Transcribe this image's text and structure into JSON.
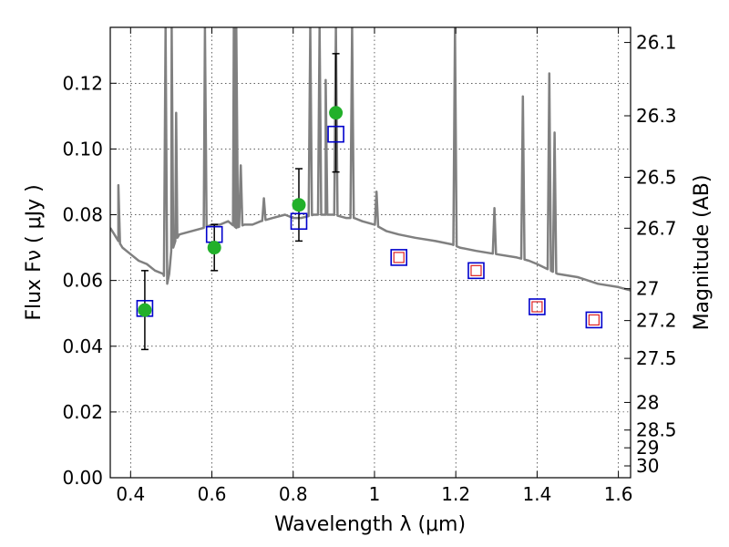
{
  "chart_data": {
    "type": "scatter",
    "title": "",
    "xlabel": "Wavelength  λ (μm)",
    "ylabel_left": "Flux  Fν  ( μJy )",
    "ylabel_right": "Magnitude (AB)",
    "xlim": [
      0.35,
      1.63
    ],
    "ylim": [
      0.0,
      0.137
    ],
    "grid": true,
    "x_ticks": [
      0.4,
      0.6,
      0.8,
      1.0,
      1.2,
      1.4,
      1.6
    ],
    "x_tick_labels": [
      "0.4",
      "0.6",
      "0.8",
      "1",
      "1.2",
      "1.4",
      "1.6"
    ],
    "y_ticks": [
      0.0,
      0.02,
      0.04,
      0.06,
      0.08,
      0.1,
      0.12
    ],
    "y_tick_labels": [
      "0.00",
      "0.02",
      "0.04",
      "0.06",
      "0.08",
      "0.10",
      "0.12"
    ],
    "right_ticks": [
      {
        "flux": 0.1324,
        "label": "26.1"
      },
      {
        "flux": 0.1101,
        "label": "26.3"
      },
      {
        "flux": 0.0914,
        "label": "26.5"
      },
      {
        "flux": 0.0759,
        "label": "26.7"
      },
      {
        "flux": 0.0575,
        "label": "27"
      },
      {
        "flux": 0.0478,
        "label": "27.2"
      },
      {
        "flux": 0.0363,
        "label": "27.5"
      },
      {
        "flux": 0.0229,
        "label": "28"
      },
      {
        "flux": 0.0145,
        "label": "28.5"
      },
      {
        "flux": 0.0091,
        "label": "29"
      },
      {
        "flux": 0.0036,
        "label": "30"
      }
    ],
    "series": [
      {
        "kind": "model_spectrum",
        "color": "#808080",
        "x": [
          0.35,
          0.36,
          0.365,
          0.37,
          0.375,
          0.38,
          0.4,
          0.42,
          0.44,
          0.46,
          0.48,
          0.49,
          0.495,
          0.5,
          0.505,
          0.51,
          0.515,
          0.52,
          0.55,
          0.58,
          0.6,
          0.62,
          0.64,
          0.66,
          0.68,
          0.7,
          0.72,
          0.75,
          0.78,
          0.8,
          0.82,
          0.85,
          0.88,
          0.9,
          0.93,
          0.95,
          0.97,
          1.0,
          1.03,
          1.06,
          1.1,
          1.15,
          1.19,
          1.21,
          1.25,
          1.3,
          1.35,
          1.38,
          1.4,
          1.45,
          1.5,
          1.55,
          1.6,
          1.63
        ],
        "y": [
          0.076,
          0.074,
          0.073,
          0.072,
          0.071,
          0.07,
          0.068,
          0.066,
          0.065,
          0.063,
          0.062,
          0.059,
          0.062,
          0.069,
          0.07,
          0.072,
          0.073,
          0.074,
          0.075,
          0.076,
          0.077,
          0.077,
          0.078,
          0.076,
          0.077,
          0.077,
          0.078,
          0.079,
          0.08,
          0.079,
          0.079,
          0.08,
          0.08,
          0.08,
          0.079,
          0.079,
          0.078,
          0.077,
          0.075,
          0.074,
          0.073,
          0.072,
          0.071,
          0.07,
          0.069,
          0.068,
          0.067,
          0.066,
          0.065,
          0.062,
          0.061,
          0.059,
          0.058,
          0.057
        ],
        "lines": [
          {
            "x": 0.37,
            "peak": 0.089
          },
          {
            "x": 0.486,
            "peak": 0.137
          },
          {
            "x": 0.501,
            "peak": 0.137
          },
          {
            "x": 0.512,
            "peak": 0.111
          },
          {
            "x": 0.583,
            "peak": 0.137
          },
          {
            "x": 0.654,
            "peak": 0.137
          },
          {
            "x": 0.66,
            "peak": 0.137
          },
          {
            "x": 0.671,
            "peak": 0.095
          },
          {
            "x": 0.656,
            "peak": 0.137
          },
          {
            "x": 0.728,
            "peak": 0.085
          },
          {
            "x": 0.842,
            "peak": 0.137
          },
          {
            "x": 0.865,
            "peak": 0.137
          },
          {
            "x": 0.88,
            "peak": 0.121
          },
          {
            "x": 0.905,
            "peak": 0.137
          },
          {
            "x": 0.945,
            "peak": 0.137
          },
          {
            "x": 1.005,
            "peak": 0.087
          },
          {
            "x": 1.198,
            "peak": 0.137
          },
          {
            "x": 1.295,
            "peak": 0.082
          },
          {
            "x": 1.365,
            "peak": 0.116
          },
          {
            "x": 1.43,
            "peak": 0.123
          },
          {
            "x": 1.443,
            "peak": 0.105
          }
        ]
      },
      {
        "kind": "observed",
        "color": "#22b02a",
        "points": [
          {
            "x": 0.435,
            "y": 0.051,
            "err": 0.012
          },
          {
            "x": 0.606,
            "y": 0.07,
            "err": 0.007
          },
          {
            "x": 0.814,
            "y": 0.083,
            "err": 0.011
          },
          {
            "x": 0.905,
            "y": 0.111,
            "err": 0.018
          }
        ]
      },
      {
        "kind": "model_photometry",
        "color": "#0000cc",
        "points": [
          {
            "x": 0.435,
            "y": 0.0515
          },
          {
            "x": 0.606,
            "y": 0.074
          },
          {
            "x": 0.814,
            "y": 0.078
          },
          {
            "x": 0.905,
            "y": 0.1045
          },
          {
            "x": 1.06,
            "y": 0.067
          },
          {
            "x": 1.25,
            "y": 0.063
          },
          {
            "x": 1.4,
            "y": 0.052
          },
          {
            "x": 1.54,
            "y": 0.048
          }
        ]
      },
      {
        "kind": "model_photometry_inner",
        "color": "#dd2222",
        "points": [
          {
            "x": 1.06,
            "y": 0.067
          },
          {
            "x": 1.25,
            "y": 0.063
          },
          {
            "x": 1.4,
            "y": 0.052
          },
          {
            "x": 1.54,
            "y": 0.048
          }
        ]
      }
    ]
  }
}
